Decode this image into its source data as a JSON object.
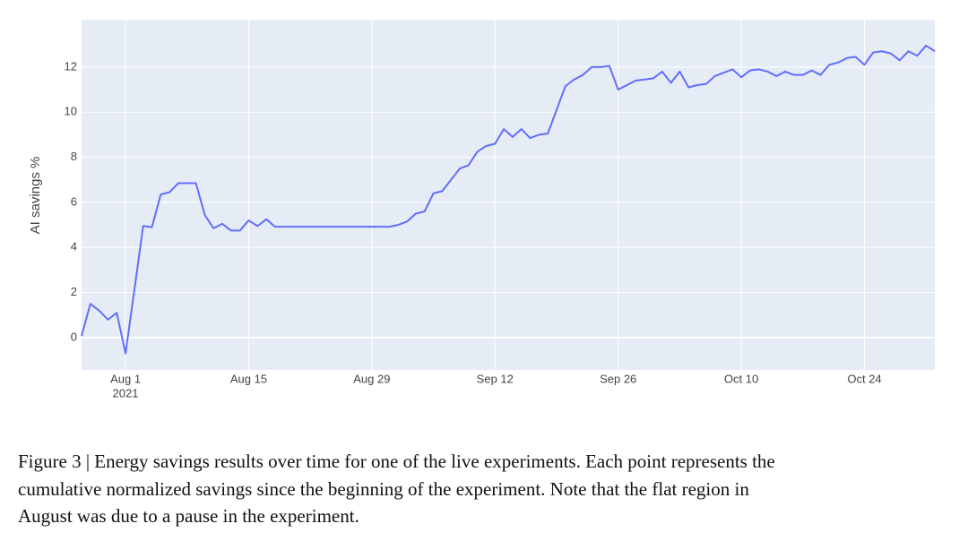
{
  "chart_data": {
    "type": "line",
    "y_label": "AI savings %",
    "x_year_label": "2021",
    "x": [
      "2021-07-27",
      "2021-07-28",
      "2021-07-29",
      "2021-07-30",
      "2021-07-31",
      "2021-08-01",
      "2021-08-02",
      "2021-08-03",
      "2021-08-04",
      "2021-08-05",
      "2021-08-06",
      "2021-08-07",
      "2021-08-08",
      "2021-08-09",
      "2021-08-10",
      "2021-08-11",
      "2021-08-12",
      "2021-08-13",
      "2021-08-14",
      "2021-08-15",
      "2021-08-16",
      "2021-08-17",
      "2021-08-18",
      "2021-08-19",
      "2021-08-20",
      "2021-08-21",
      "2021-08-22",
      "2021-08-23",
      "2021-08-24",
      "2021-08-25",
      "2021-08-26",
      "2021-08-27",
      "2021-08-28",
      "2021-08-29",
      "2021-08-30",
      "2021-08-31",
      "2021-09-01",
      "2021-09-02",
      "2021-09-03",
      "2021-09-04",
      "2021-09-05",
      "2021-09-06",
      "2021-09-07",
      "2021-09-08",
      "2021-09-09",
      "2021-09-10",
      "2021-09-11",
      "2021-09-12",
      "2021-09-13",
      "2021-09-14",
      "2021-09-15",
      "2021-09-16",
      "2021-09-17",
      "2021-09-18",
      "2021-09-19",
      "2021-09-20",
      "2021-09-21",
      "2021-09-22",
      "2021-09-23",
      "2021-09-24",
      "2021-09-25",
      "2021-09-26",
      "2021-09-27",
      "2021-09-28",
      "2021-09-29",
      "2021-09-30",
      "2021-10-01",
      "2021-10-02",
      "2021-10-03",
      "2021-10-04",
      "2021-10-05",
      "2021-10-06",
      "2021-10-07",
      "2021-10-08",
      "2021-10-09",
      "2021-10-10",
      "2021-10-11",
      "2021-10-12",
      "2021-10-13",
      "2021-10-14",
      "2021-10-15",
      "2021-10-16",
      "2021-10-17",
      "2021-10-18",
      "2021-10-19",
      "2021-10-20",
      "2021-10-21",
      "2021-10-22",
      "2021-10-23",
      "2021-10-24",
      "2021-10-25",
      "2021-10-26",
      "2021-10-27",
      "2021-10-28",
      "2021-10-29",
      "2021-10-30",
      "2021-10-31",
      "2021-11-01"
    ],
    "series": [
      {
        "name": "AI savings",
        "color": "#636efa",
        "values": [
          0.08,
          1.5,
          1.2,
          0.8,
          1.1,
          -0.7,
          2.1,
          4.95,
          4.9,
          6.35,
          6.45,
          6.85,
          6.85,
          6.85,
          5.45,
          4.85,
          5.05,
          4.75,
          4.75,
          5.2,
          4.95,
          5.25,
          4.92,
          4.92,
          4.92,
          4.92,
          4.92,
          4.92,
          4.92,
          4.92,
          4.92,
          4.92,
          4.92,
          4.92,
          4.92,
          4.92,
          5.0,
          5.15,
          5.5,
          5.6,
          6.4,
          6.5,
          7.0,
          7.5,
          7.65,
          8.25,
          8.5,
          8.6,
          9.25,
          8.9,
          9.25,
          8.85,
          9.0,
          9.05,
          10.1,
          11.15,
          11.45,
          11.65,
          12.0,
          12.0,
          12.05,
          11.0,
          11.2,
          11.4,
          11.45,
          11.5,
          11.8,
          11.3,
          11.8,
          11.1,
          11.2,
          11.25,
          11.6,
          11.75,
          11.9,
          11.55,
          11.85,
          11.9,
          11.8,
          11.6,
          11.8,
          11.65,
          11.65,
          11.85,
          11.65,
          12.1,
          12.2,
          12.4,
          12.45,
          12.1,
          12.65,
          12.7,
          12.6,
          12.3,
          12.7,
          12.5,
          12.95,
          12.7
        ]
      }
    ],
    "xlim": [
      "2021-07-27",
      "2021-11-01"
    ],
    "xticks": [
      {
        "value": "2021-08-01",
        "label": "Aug 1"
      },
      {
        "value": "2021-08-15",
        "label": "Aug 15"
      },
      {
        "value": "2021-08-29",
        "label": "Aug 29"
      },
      {
        "value": "2021-09-12",
        "label": "Sep 12"
      },
      {
        "value": "2021-09-26",
        "label": "Sep 26"
      },
      {
        "value": "2021-10-10",
        "label": "Oct 10"
      },
      {
        "value": "2021-10-24",
        "label": "Oct 24"
      }
    ],
    "ylim": [
      -1.43,
      14.1
    ],
    "yticks": [
      0,
      2,
      4,
      6,
      8,
      10,
      12
    ],
    "grid": true
  },
  "caption_lines": [
    "Figure 3 | Energy savings results over time for one of the live experiments. Each point represents the",
    "cumulative normalized savings since the beginning of the experiment. Note that the flat region in",
    "August was due to a pause in the experiment."
  ]
}
